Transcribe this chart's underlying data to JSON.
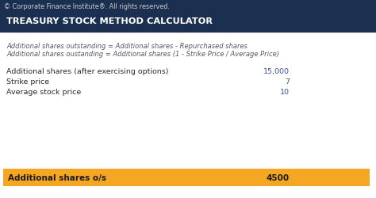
{
  "copyright": "© Corporate Finance Institute®. All rights reserved.",
  "title": "TREASURY STOCK METHOD CALCULATOR",
  "title_bg": "#1b3050",
  "title_color": "#ffffff",
  "page_bg": "#1b3050",
  "content_bg": "#ffffff",
  "formula1": "Additional shares outstanding = Additional shares - Repurchased shares",
  "formula2": "Additional shares oustanding = Additional shares (1 - Strike Price / Average Price)",
  "rows": [
    {
      "label": "Additional shares (after exercising options)",
      "value": "15,000"
    },
    {
      "label": "Strike price",
      "value": "7"
    },
    {
      "label": "Average stock price",
      "value": "10"
    }
  ],
  "row_label_color": "#2b2b2b",
  "row_value_color": "#3a4fa0",
  "result_label": "Additional shares o/s",
  "result_value": "4500",
  "result_bg": "#f5a623",
  "result_text_color": "#1a1a1a",
  "formula_color": "#555566",
  "copyright_color": "#cccccc"
}
